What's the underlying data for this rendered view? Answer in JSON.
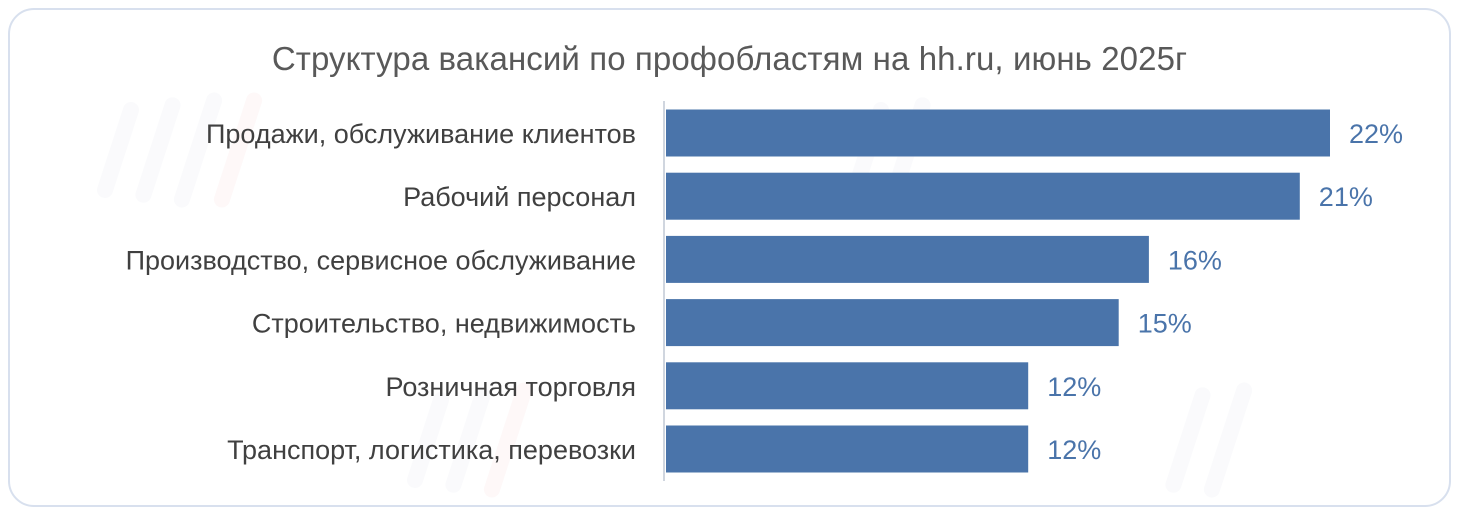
{
  "chart_data": {
    "type": "bar",
    "orientation": "horizontal",
    "title": "Структура вакансий по профобластям на hh.ru, июнь 2025г",
    "categories": [
      "Продажи, обслуживание клиентов",
      "Рабочий персонал",
      "Производство, сервисное обслуживание",
      "Строительство, недвижимость",
      "Розничная торговля",
      "Транспорт, логистика, перевозки"
    ],
    "values": [
      22,
      21,
      16,
      15,
      12,
      12
    ],
    "value_labels": [
      "22%",
      "21%",
      "16%",
      "15%",
      "12%",
      "12%"
    ],
    "unit": "%",
    "xlim": [
      0,
      22
    ],
    "grid": false,
    "legend": "none",
    "bar_color": "#4a74aa",
    "value_label_color": "#4a74aa"
  }
}
